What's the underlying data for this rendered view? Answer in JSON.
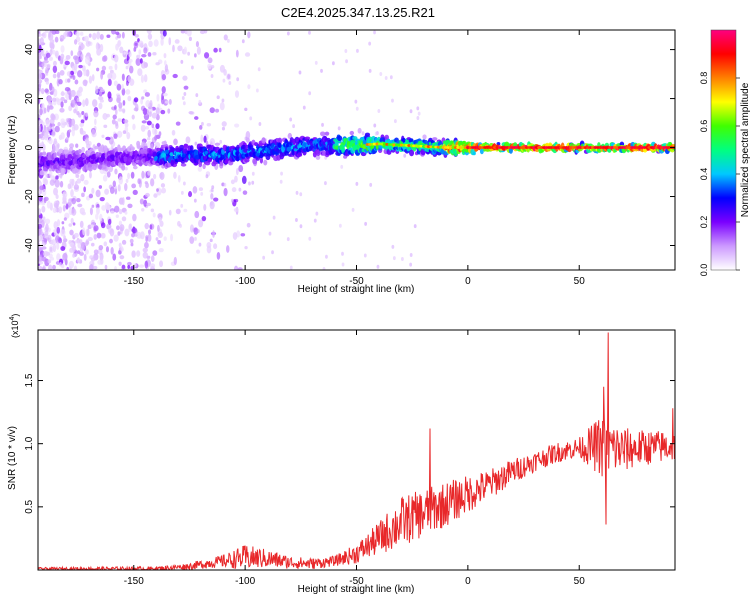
{
  "title": "C2E4.2025.347.13.25.R21",
  "chart_data": [
    {
      "type": "heatmap",
      "id": "spectrogram",
      "xlabel": "Height of straight line (km)",
      "ylabel": "Frequency (Hz)",
      "xlim": [
        -193,
        93
      ],
      "ylim": [
        -50,
        48
      ],
      "xticks": [
        -150,
        -100,
        -50,
        0,
        50
      ],
      "xtick_labels": [
        "-150",
        "-100",
        "-50",
        "0",
        "50"
      ],
      "yticks": [
        -40,
        -20,
        0,
        20,
        40
      ],
      "ytick_labels": [
        "-40",
        "-20",
        "0",
        "20",
        "40"
      ],
      "ridge": [
        {
          "x": -190,
          "freq": -6
        },
        {
          "x": -170,
          "freq": -5
        },
        {
          "x": -150,
          "freq": -4
        },
        {
          "x": -130,
          "freq": -3
        },
        {
          "x": -110,
          "freq": -3
        },
        {
          "x": -100,
          "freq": -2
        },
        {
          "x": -90,
          "freq": -1
        },
        {
          "x": -80,
          "freq": 0
        },
        {
          "x": -70,
          "freq": 1
        },
        {
          "x": -60,
          "freq": 1
        },
        {
          "x": -50,
          "freq": 1
        },
        {
          "x": -40,
          "freq": 1.5
        },
        {
          "x": -30,
          "freq": 1
        },
        {
          "x": -20,
          "freq": 0.5
        },
        {
          "x": -10,
          "freq": 0
        },
        {
          "x": 0,
          "freq": 0
        },
        {
          "x": 20,
          "freq": 0
        },
        {
          "x": 50,
          "freq": 0
        },
        {
          "x": 70,
          "freq": 0
        },
        {
          "x": 93,
          "freq": 0
        }
      ],
      "colorbar": {
        "label": "Normalized spectral amplitude",
        "range": [
          0,
          1
        ],
        "ticks": [
          0.0,
          0.2,
          0.4,
          0.6,
          0.8
        ],
        "tick_labels": [
          "0.0",
          "0.2",
          "0.4",
          "0.6",
          "0.8"
        ],
        "colors": [
          "#ffffff",
          "#cc99ff",
          "#7a00ff",
          "#0000ff",
          "#00c8ff",
          "#00ff80",
          "#40ff00",
          "#ffff00",
          "#ff8000",
          "#ff0000",
          "#ff0080"
        ]
      }
    },
    {
      "type": "line",
      "id": "snr",
      "xlabel": "Height of straight line (km)",
      "ylabel": "SNR (10 * v/v)",
      "scale_label": "(x10",
      "scale_exponent": "4",
      "scale_label_close": ")",
      "xlim": [
        -193,
        93
      ],
      "ylim": [
        0,
        1.9
      ],
      "xticks": [
        -150,
        -100,
        -50,
        0,
        50
      ],
      "xtick_labels": [
        "-150",
        "-100",
        "-50",
        "0",
        "50"
      ],
      "yticks": [
        0.5,
        1.0,
        1.5
      ],
      "ytick_labels": [
        "0.5",
        "1.0",
        "1.5"
      ],
      "color": "#e8282a",
      "trend": [
        {
          "x": -193,
          "y": 0.01
        },
        {
          "x": -140,
          "y": 0.01
        },
        {
          "x": -125,
          "y": 0.03
        },
        {
          "x": -110,
          "y": 0.07
        },
        {
          "x": -100,
          "y": 0.1
        },
        {
          "x": -90,
          "y": 0.09
        },
        {
          "x": -80,
          "y": 0.06
        },
        {
          "x": -70,
          "y": 0.05
        },
        {
          "x": -60,
          "y": 0.07
        },
        {
          "x": -50,
          "y": 0.13
        },
        {
          "x": -40,
          "y": 0.25
        },
        {
          "x": -30,
          "y": 0.38
        },
        {
          "x": -20,
          "y": 0.45
        },
        {
          "x": -10,
          "y": 0.52
        },
        {
          "x": 0,
          "y": 0.6
        },
        {
          "x": 10,
          "y": 0.68
        },
        {
          "x": 20,
          "y": 0.78
        },
        {
          "x": 30,
          "y": 0.86
        },
        {
          "x": 40,
          "y": 0.93
        },
        {
          "x": 50,
          "y": 0.97
        },
        {
          "x": 60,
          "y": 0.98
        },
        {
          "x": 70,
          "y": 0.95
        },
        {
          "x": 80,
          "y": 0.97
        },
        {
          "x": 93,
          "y": 0.98
        }
      ],
      "noise": [
        {
          "x": -193,
          "amp": 0.01
        },
        {
          "x": -130,
          "amp": 0.02
        },
        {
          "x": -110,
          "amp": 0.05
        },
        {
          "x": -100,
          "amp": 0.1
        },
        {
          "x": -80,
          "amp": 0.05
        },
        {
          "x": -60,
          "amp": 0.04
        },
        {
          "x": -45,
          "amp": 0.1
        },
        {
          "x": -30,
          "amp": 0.2
        },
        {
          "x": -10,
          "amp": 0.18
        },
        {
          "x": 10,
          "amp": 0.12
        },
        {
          "x": 30,
          "amp": 0.08
        },
        {
          "x": 50,
          "amp": 0.08
        },
        {
          "x": 60,
          "amp": 0.25
        },
        {
          "x": 75,
          "amp": 0.15
        },
        {
          "x": 93,
          "amp": 0.12
        }
      ],
      "peaks": [
        {
          "x": -17,
          "y": 1.12
        },
        {
          "x": 63,
          "y": 1.88
        },
        {
          "x": 61,
          "y": 1.45
        },
        {
          "x": 62,
          "y": 0.36
        },
        {
          "x": 92,
          "y": 1.28
        }
      ]
    }
  ]
}
